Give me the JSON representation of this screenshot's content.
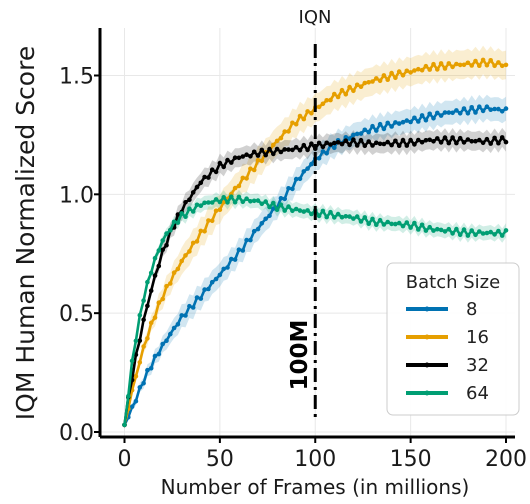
{
  "chart_data": {
    "type": "line",
    "title": "IQN",
    "xlabel": "Number of Frames (in millions)",
    "ylabel": "IQM Human Normalized Score",
    "xlim": [
      -8,
      205
    ],
    "ylim": [
      0,
      1.72
    ],
    "xticks": [
      0,
      50,
      100,
      150,
      200
    ],
    "xtick_labels": [
      "0",
      "50",
      "100",
      "150",
      "200"
    ],
    "yticks": [
      0.0,
      0.5,
      1.0,
      1.5
    ],
    "ytick_labels": [
      "0.0",
      "0.5",
      "1.0",
      "1.5"
    ],
    "grid": true,
    "legend": {
      "title": "Batch Size",
      "placement": "lower-right"
    },
    "annotation": {
      "text": "100M",
      "x": 100,
      "style": "vertical dash-dot line with rotated bold label"
    },
    "x": [
      0,
      5,
      10,
      15,
      20,
      25,
      30,
      40,
      50,
      60,
      70,
      80,
      90,
      100,
      110,
      120,
      130,
      140,
      150,
      160,
      170,
      180,
      190,
      200
    ],
    "series": [
      {
        "name": "8",
        "color": "#0072b2",
        "values": [
          0.03,
          0.12,
          0.22,
          0.3,
          0.37,
          0.43,
          0.49,
          0.58,
          0.67,
          0.76,
          0.86,
          0.95,
          1.05,
          1.14,
          1.2,
          1.24,
          1.27,
          1.29,
          1.31,
          1.33,
          1.35,
          1.36,
          1.37,
          1.36
        ],
        "band": 0.05
      },
      {
        "name": "16",
        "color": "#e69f00",
        "values": [
          0.03,
          0.2,
          0.35,
          0.47,
          0.57,
          0.65,
          0.72,
          0.84,
          0.95,
          1.05,
          1.14,
          1.23,
          1.31,
          1.36,
          1.41,
          1.44,
          1.47,
          1.49,
          1.51,
          1.53,
          1.54,
          1.55,
          1.56,
          1.55
        ],
        "band": 0.06
      },
      {
        "name": "32",
        "color": "#000000",
        "values": [
          0.03,
          0.27,
          0.46,
          0.62,
          0.75,
          0.85,
          0.93,
          1.05,
          1.12,
          1.16,
          1.18,
          1.19,
          1.2,
          1.21,
          1.22,
          1.22,
          1.21,
          1.21,
          1.21,
          1.22,
          1.22,
          1.22,
          1.22,
          1.23
        ],
        "band": 0.04
      },
      {
        "name": "64",
        "color": "#009e73",
        "values": [
          0.03,
          0.35,
          0.56,
          0.7,
          0.8,
          0.86,
          0.9,
          0.95,
          0.97,
          0.975,
          0.97,
          0.95,
          0.94,
          0.93,
          0.92,
          0.91,
          0.89,
          0.88,
          0.87,
          0.85,
          0.84,
          0.83,
          0.83,
          0.83
        ],
        "band": 0.03
      }
    ]
  }
}
